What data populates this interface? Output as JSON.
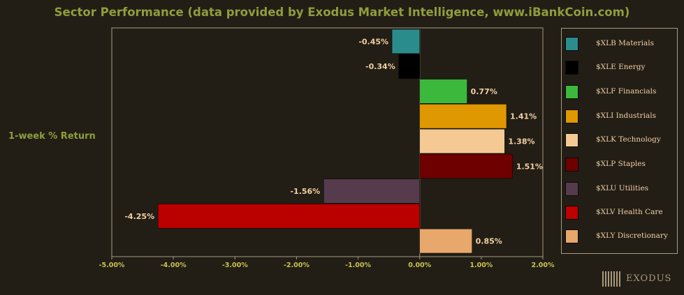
{
  "chart_data": {
    "type": "bar",
    "orientation": "horizontal",
    "title": "Sector Performance (data provided by Exodus Market Intelligence, www.iBankCoin.com)",
    "ylabel": "1-week % Return",
    "xlim": [
      -5.0,
      2.0
    ],
    "xticks": [
      "-5.00%",
      "-4.00%",
      "-3.00%",
      "-2.00%",
      "-1.00%",
      "0.00%",
      "1.00%",
      "2.00%"
    ],
    "xtick_values": [
      -5,
      -4,
      -3,
      -2,
      -1,
      0,
      1,
      2
    ],
    "grid": false,
    "legend_position": "right",
    "series": [
      {
        "name": "$XLB Materials",
        "value": -0.45,
        "label": "-0.45%",
        "color": "#2b8c8c"
      },
      {
        "name": "$XLE Energy",
        "value": -0.34,
        "label": "-0.34%",
        "color": "#000000"
      },
      {
        "name": "$XLF Financials",
        "value": 0.77,
        "label": "0.77%",
        "color": "#3cb93c"
      },
      {
        "name": "$XLI Industrials",
        "value": 1.41,
        "label": "1.41%",
        "color": "#e09800"
      },
      {
        "name": "$XLK Technology",
        "value": 1.38,
        "label": "1.38%",
        "color": "#f5c994"
      },
      {
        "name": "$XLP Staples",
        "value": 1.51,
        "label": "1.51%",
        "color": "#6e0000"
      },
      {
        "name": "$XLU Utilities",
        "value": -1.56,
        "label": "-1.56%",
        "color": "#553b4b"
      },
      {
        "name": "$XLV Health Care",
        "value": -4.25,
        "label": "-4.25%",
        "color": "#bb0000"
      },
      {
        "name": "$XLY Discretionary",
        "value": 0.85,
        "label": "0.85%",
        "color": "#e8a86c"
      }
    ]
  },
  "colors": {
    "background": "#221e16",
    "title": "#8f9e3c",
    "axis": "#a69c80",
    "tick_label": "#c9c34e",
    "data_label": "#f2cfa2"
  },
  "logo": {
    "text": "EXODUS"
  }
}
